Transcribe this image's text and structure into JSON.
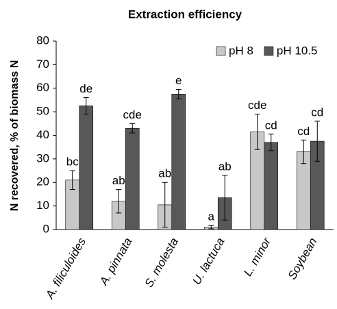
{
  "chart_data": {
    "type": "bar",
    "title": "Extraction efficiency",
    "y_label": "N recovered, % of biomass N",
    "categories": [
      "A. filiculoides",
      "A. pinnata",
      "S. molesta",
      "U. lactuca",
      "L. minor",
      "Soybean"
    ],
    "series": [
      {
        "name": "pH 8",
        "color": "#c8c8c8",
        "values": [
          21,
          12,
          10.5,
          1,
          41.5,
          33
        ],
        "errors": [
          4,
          5,
          9.5,
          0.7,
          7.5,
          5
        ],
        "letters": [
          "bc",
          "ab",
          "ab",
          "a",
          "cde",
          "cd"
        ]
      },
      {
        "name": "pH 10.5",
        "color": "#585858",
        "values": [
          52.5,
          43,
          57.5,
          13.5,
          37,
          37.5
        ],
        "errors": [
          3.5,
          2,
          2,
          9.5,
          3.5,
          8.5
        ],
        "letters": [
          "de",
          "cde",
          "e",
          "ab",
          "cd",
          "cd"
        ]
      }
    ],
    "ylim": [
      0,
      80
    ],
    "yticks": [
      0,
      10,
      20,
      30,
      40,
      50,
      60,
      70,
      80
    ],
    "grid": false,
    "legend": "upper right"
  }
}
